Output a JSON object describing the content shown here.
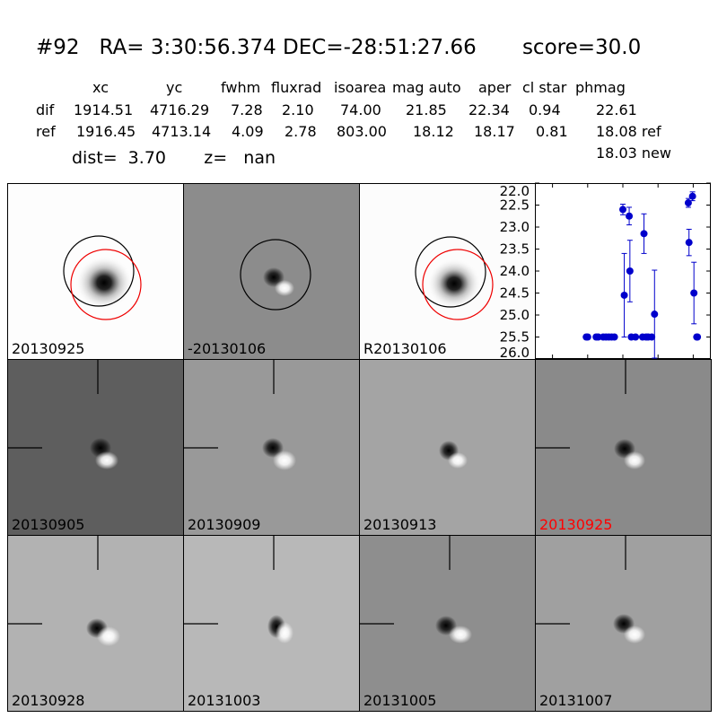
{
  "header": {
    "title": "#92   RA= 3:30:56.374 DEC=-28:51:27.66       score=30.0",
    "columns": [
      "xc",
      "yc",
      "fwhm",
      "fluxrad",
      "isoarea",
      "mag auto",
      "aper",
      "cl star",
      "phmag"
    ],
    "rows": [
      {
        "name": "dif",
        "values": [
          "1914.51",
          "4716.29",
          "7.28",
          "2.10",
          "74.00",
          "21.85",
          "22.34",
          "0.94",
          "22.61"
        ]
      },
      {
        "name": "ref",
        "values": [
          "1916.45",
          "4713.14",
          "4.09",
          "2.78",
          "803.00",
          "18.12",
          "18.17",
          "0.81",
          "18.08 ref"
        ]
      }
    ],
    "extra_phmag": "18.03 new",
    "dist": "dist=  3.70       z=   nan"
  },
  "panels": [
    {
      "label": "20130925",
      "label_color": "#000000"
    },
    {
      "label": "-20130106",
      "label_color": "#000000"
    },
    {
      "label": "R20130106",
      "label_color": "#000000"
    },
    {
      "label": "20130905",
      "label_color": "#000000"
    },
    {
      "label": "20130909",
      "label_color": "#000000"
    },
    {
      "label": "20130913",
      "label_color": "#000000"
    },
    {
      "label": "20130925",
      "label_color": "#ff0000"
    },
    {
      "label": "20130928",
      "label_color": "#000000"
    },
    {
      "label": "20131003",
      "label_color": "#000000"
    },
    {
      "label": "20131005",
      "label_color": "#000000"
    },
    {
      "label": "20131007",
      "label_color": "#000000"
    }
  ],
  "chart_data": {
    "type": "scatter",
    "xlim": [
      -125,
      125
    ],
    "ylim": [
      26.0,
      22.0
    ],
    "x_ticks": [
      "-100",
      "-50",
      "0",
      "50",
      "100"
    ],
    "y_ticks": [
      "22.0",
      "22.5",
      "23.0",
      "23.5",
      "24.0",
      "24.5",
      "25.0",
      "25.5",
      "26.0"
    ],
    "color": "#0000cc",
    "points": [
      {
        "x": -52,
        "y": 25.5,
        "err": 0
      },
      {
        "x": -50,
        "y": 25.5,
        "err": 0
      },
      {
        "x": -38,
        "y": 25.5,
        "err": 0
      },
      {
        "x": -35,
        "y": 25.5,
        "err": 0
      },
      {
        "x": -28,
        "y": 25.5,
        "err": 0
      },
      {
        "x": -24,
        "y": 25.5,
        "err": 0
      },
      {
        "x": -20,
        "y": 25.5,
        "err": 0
      },
      {
        "x": -16,
        "y": 25.5,
        "err": 0
      },
      {
        "x": -12,
        "y": 25.5,
        "err": 0
      },
      {
        "x": 0,
        "y": 22.6,
        "err": 0.12
      },
      {
        "x": 2,
        "y": 24.55,
        "err": 0.95
      },
      {
        "x": 9,
        "y": 22.75,
        "err": 0.2
      },
      {
        "x": 10,
        "y": 24.0,
        "err": 0.7
      },
      {
        "x": 12,
        "y": 25.5,
        "err": 0
      },
      {
        "x": 18,
        "y": 25.5,
        "err": 0
      },
      {
        "x": 28,
        "y": 25.5,
        "err": 0
      },
      {
        "x": 30,
        "y": 23.15,
        "err": 0.45
      },
      {
        "x": 33,
        "y": 25.5,
        "err": 0
      },
      {
        "x": 36,
        "y": 25.5,
        "err": 0
      },
      {
        "x": 41,
        "y": 25.5,
        "err": 0
      },
      {
        "x": 45,
        "y": 24.98,
        "err": 1.0
      },
      {
        "x": 93,
        "y": 22.45,
        "err": 0.1
      },
      {
        "x": 94,
        "y": 23.35,
        "err": 0.3
      },
      {
        "x": 99,
        "y": 22.3,
        "err": 0.1
      },
      {
        "x": 101,
        "y": 24.5,
        "err": 0.7
      },
      {
        "x": 105,
        "y": 25.5,
        "err": 0
      },
      {
        "x": 106,
        "y": 25.5,
        "err": 0
      }
    ]
  }
}
